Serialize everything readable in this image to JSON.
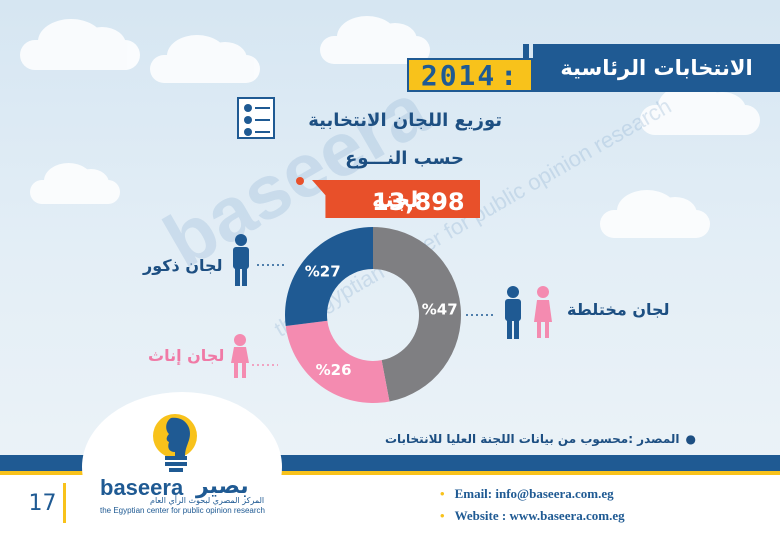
{
  "header": {
    "title": "الانتخابات الرئاسية",
    "year": "2014",
    "colon": ":"
  },
  "chart_title_line1": "توزيع اللجان الانتخابية",
  "chart_title_line2": "حسب النـــوع",
  "total": {
    "value": "13,898",
    "unit": "لجنه"
  },
  "watermark": {
    "brand": "baseera",
    "tagline": "the Egyptian center for public opinion research"
  },
  "chart_data": {
    "type": "pie",
    "style": "donut",
    "slices": [
      {
        "label": "لجان ذكور",
        "value": 27,
        "display": "%27",
        "color": "#1f5a93"
      },
      {
        "label": "لجان مختلطة",
        "value": 47,
        "display": "%47",
        "color": "#7f7f82"
      },
      {
        "label": "لجان إناث",
        "value": 26,
        "display": "%26",
        "color": "#f48bb0"
      }
    ]
  },
  "labels": {
    "male": "لجان ذكور",
    "female": "لجان إناث",
    "mixed": "لجان مختلطة"
  },
  "source": {
    "bullet": "●",
    "text": "المصدر :محسوب من بيانات اللجنة العليا للانتخابات"
  },
  "footer": {
    "page_number": "17",
    "logo_en": "baseera",
    "logo_ar": "بصير",
    "logo_ar_tagline": "المركز المصري لبحوث الرأي العام",
    "logo_en_tagline": "the Egyptian center for public opinion research",
    "email": "Email: info@baseera.com.eg",
    "website": "Website : www.baseera.com.eg",
    "bullet": "•"
  },
  "colors": {
    "brand_blue": "#1f5a93",
    "accent_yellow": "#f8c21b",
    "tag_orange": "#e8502a",
    "pink": "#f48bb0",
    "gray": "#7f7f82"
  }
}
